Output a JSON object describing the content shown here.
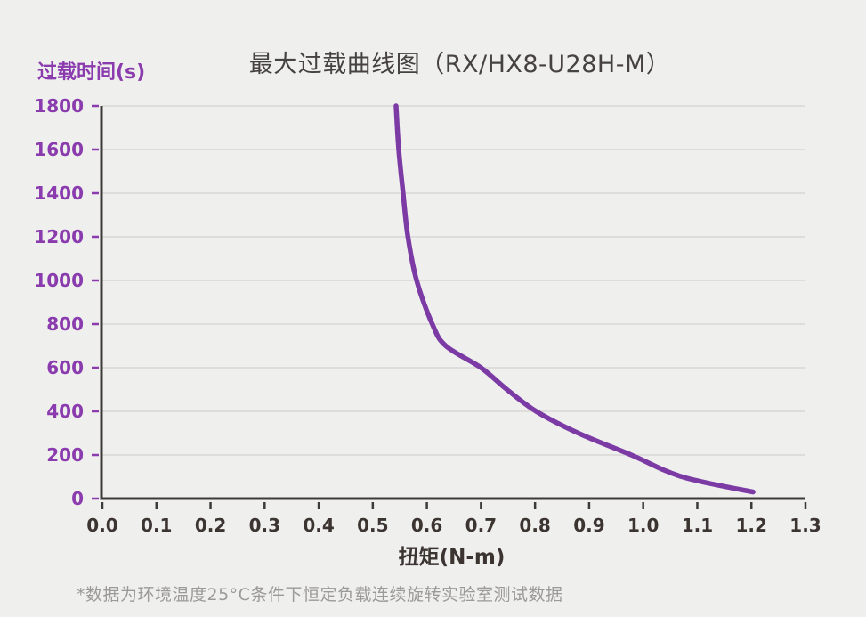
{
  "header": {
    "title": "最大过载曲线图（RX/HX8-U28H-M）"
  },
  "chart_data": {
    "type": "line",
    "title": "最大过载曲线图（RX/HX8-U28H-M）",
    "xlabel": "扭矩(N-m)",
    "ylabel": "过载时间(s)",
    "xlim": [
      0,
      1.3
    ],
    "ylim": [
      0,
      1800
    ],
    "x_ticks": [
      0.0,
      0.1,
      0.2,
      0.3,
      0.4,
      0.5,
      0.6,
      0.7,
      0.8,
      0.9,
      1.0,
      1.1,
      1.2,
      1.3
    ],
    "y_ticks": [
      0,
      200,
      400,
      600,
      800,
      1000,
      1200,
      1400,
      1600,
      1800
    ],
    "grid": "horizontal-only",
    "legend": "none",
    "series": [
      {
        "x": [
          0.543,
          0.548,
          0.556,
          0.565,
          0.581,
          0.61,
          0.635,
          0.7,
          0.748,
          0.802,
          0.88,
          0.978,
          1.072,
          1.203
        ],
        "y": [
          1800,
          1600,
          1400,
          1200,
          1000,
          800,
          700,
          600,
          500,
          400,
          300,
          200,
          100,
          30
        ]
      }
    ]
  },
  "footnote": {
    "text": "*数据为环境温度25°C条件下恒定负载连续旋转实验室测试数据"
  },
  "style": {
    "background": "#efefee",
    "curve_color": "#7c3ba4",
    "accent_text": "#8a3bad",
    "axis_color": "#3d3b39",
    "grid_color": "#d8d7d5",
    "dark_text": "#3b3431",
    "muted_text": "#9c9a98"
  }
}
